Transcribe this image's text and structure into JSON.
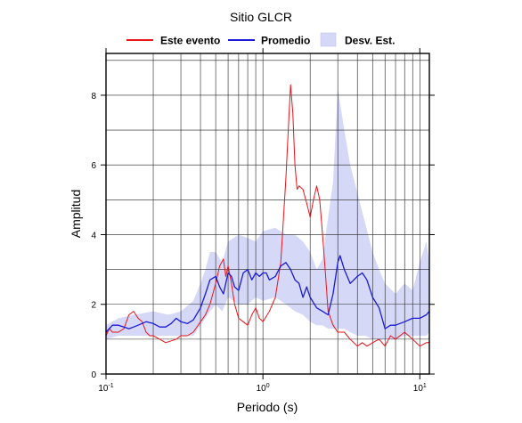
{
  "chart_data": {
    "type": "line",
    "title": "Sitio GLCR",
    "xlabel": "Periodo (s)",
    "ylabel": "Amplitud",
    "xscale": "log",
    "xlim": [
      0.1,
      11.5
    ],
    "ylim": [
      0,
      9.2
    ],
    "xticks": [
      {
        "value": 0.1,
        "base": "10",
        "exp": "-1"
      },
      {
        "value": 1,
        "base": "10",
        "exp": "0"
      },
      {
        "value": 10,
        "base": "10",
        "exp": "1"
      }
    ],
    "yticks": [
      0,
      2,
      4,
      6,
      8
    ],
    "grid": true,
    "legend_position": "top-center",
    "series": [
      {
        "name": "Este evento",
        "color": "#e8141a",
        "x": [
          0.1,
          0.105,
          0.11,
          0.12,
          0.13,
          0.14,
          0.15,
          0.16,
          0.17,
          0.18,
          0.19,
          0.2,
          0.22,
          0.24,
          0.26,
          0.28,
          0.3,
          0.33,
          0.36,
          0.4,
          0.43,
          0.46,
          0.5,
          0.53,
          0.56,
          0.58,
          0.6,
          0.63,
          0.66,
          0.7,
          0.75,
          0.8,
          0.85,
          0.9,
          0.95,
          1.0,
          1.1,
          1.2,
          1.3,
          1.4,
          1.45,
          1.5,
          1.55,
          1.6,
          1.65,
          1.7,
          1.8,
          1.9,
          2.0,
          2.1,
          2.2,
          2.3,
          2.4,
          2.5,
          2.6,
          2.8,
          3.0,
          3.3,
          3.6,
          4.0,
          4.3,
          4.6,
          5.0,
          5.5,
          6.0,
          6.5,
          7.0,
          8.0,
          9.0,
          10.0,
          11.0,
          11.5
        ],
        "y": [
          1.1,
          1.3,
          1.2,
          1.2,
          1.3,
          1.7,
          1.8,
          1.6,
          1.5,
          1.2,
          1.1,
          1.1,
          1.0,
          0.9,
          0.95,
          1.0,
          1.1,
          1.1,
          1.2,
          1.5,
          1.7,
          2.0,
          2.6,
          3.1,
          3.3,
          2.8,
          3.1,
          2.6,
          2.0,
          1.6,
          1.5,
          1.4,
          1.7,
          1.9,
          1.6,
          1.5,
          1.8,
          2.2,
          3.2,
          5.6,
          7.0,
          8.3,
          7.5,
          6.0,
          5.3,
          5.4,
          5.3,
          4.9,
          4.5,
          5.0,
          5.4,
          5.0,
          4.0,
          2.9,
          1.8,
          1.4,
          1.2,
          1.2,
          1.0,
          0.8,
          0.9,
          0.8,
          0.9,
          1.0,
          0.8,
          1.1,
          1.0,
          1.2,
          1.0,
          0.8,
          0.9,
          0.9
        ]
      },
      {
        "name": "Promedio",
        "color": "#1a1ad6",
        "x": [
          0.1,
          0.11,
          0.12,
          0.13,
          0.14,
          0.15,
          0.16,
          0.18,
          0.2,
          0.22,
          0.24,
          0.26,
          0.28,
          0.3,
          0.33,
          0.36,
          0.4,
          0.43,
          0.46,
          0.5,
          0.53,
          0.56,
          0.6,
          0.63,
          0.66,
          0.7,
          0.75,
          0.8,
          0.85,
          0.9,
          0.95,
          1.0,
          1.05,
          1.1,
          1.2,
          1.3,
          1.4,
          1.5,
          1.6,
          1.7,
          1.8,
          1.9,
          2.0,
          2.2,
          2.4,
          2.6,
          2.8,
          3.0,
          3.1,
          3.3,
          3.6,
          4.0,
          4.3,
          4.6,
          5.0,
          5.5,
          6.0,
          6.5,
          7.0,
          8.0,
          9.0,
          10.0,
          11.0,
          11.5
        ],
        "y": [
          1.2,
          1.4,
          1.4,
          1.35,
          1.3,
          1.35,
          1.4,
          1.5,
          1.45,
          1.35,
          1.35,
          1.45,
          1.6,
          1.5,
          1.45,
          1.55,
          1.9,
          2.3,
          2.7,
          2.8,
          2.5,
          2.3,
          2.9,
          2.8,
          2.5,
          2.4,
          2.9,
          3.0,
          2.7,
          2.9,
          2.8,
          2.9,
          2.9,
          2.7,
          2.8,
          3.1,
          3.2,
          3.0,
          2.7,
          2.6,
          2.2,
          2.5,
          2.2,
          1.9,
          1.8,
          1.7,
          2.3,
          3.2,
          3.4,
          3.0,
          2.6,
          2.8,
          2.9,
          2.7,
          2.2,
          1.9,
          1.3,
          1.4,
          1.4,
          1.5,
          1.6,
          1.6,
          1.7,
          1.8
        ]
      },
      {
        "name": "Desv. Est.",
        "type": "area",
        "color": "#d6d8f7",
        "x": [
          0.1,
          0.12,
          0.15,
          0.2,
          0.25,
          0.3,
          0.36,
          0.4,
          0.43,
          0.46,
          0.5,
          0.55,
          0.6,
          0.7,
          0.8,
          0.9,
          1.0,
          1.2,
          1.4,
          1.6,
          1.8,
          2.0,
          2.2,
          2.4,
          2.6,
          2.8,
          3.0,
          3.3,
          3.6,
          4.0,
          4.5,
          5.0,
          5.5,
          6.0,
          7.0,
          8.0,
          9.0,
          10.0,
          11.0,
          11.5
        ],
        "upper": [
          1.4,
          1.6,
          1.7,
          1.8,
          1.7,
          1.8,
          2.1,
          2.6,
          3.0,
          3.5,
          3.5,
          3.2,
          3.8,
          4.0,
          3.9,
          3.8,
          4.1,
          4.2,
          4.0,
          4.0,
          3.8,
          3.5,
          3.0,
          3.3,
          4.5,
          5.5,
          8.2,
          7.0,
          6.0,
          5.2,
          4.3,
          3.5,
          3.0,
          2.6,
          2.3,
          2.6,
          2.4,
          3.2,
          3.8,
          3.2
        ],
        "lower": [
          1.0,
          1.1,
          1.1,
          1.1,
          1.1,
          1.1,
          1.1,
          1.4,
          1.6,
          1.8,
          2.0,
          1.8,
          2.2,
          2.0,
          2.0,
          2.2,
          2.1,
          2.2,
          2.0,
          1.8,
          1.7,
          1.5,
          1.4,
          1.4,
          1.3,
          1.3,
          1.3,
          1.3,
          1.2,
          1.1,
          1.1,
          1.0,
          1.0,
          1.0,
          1.0,
          1.1,
          1.1,
          1.1,
          1.1,
          1.2
        ]
      }
    ]
  }
}
